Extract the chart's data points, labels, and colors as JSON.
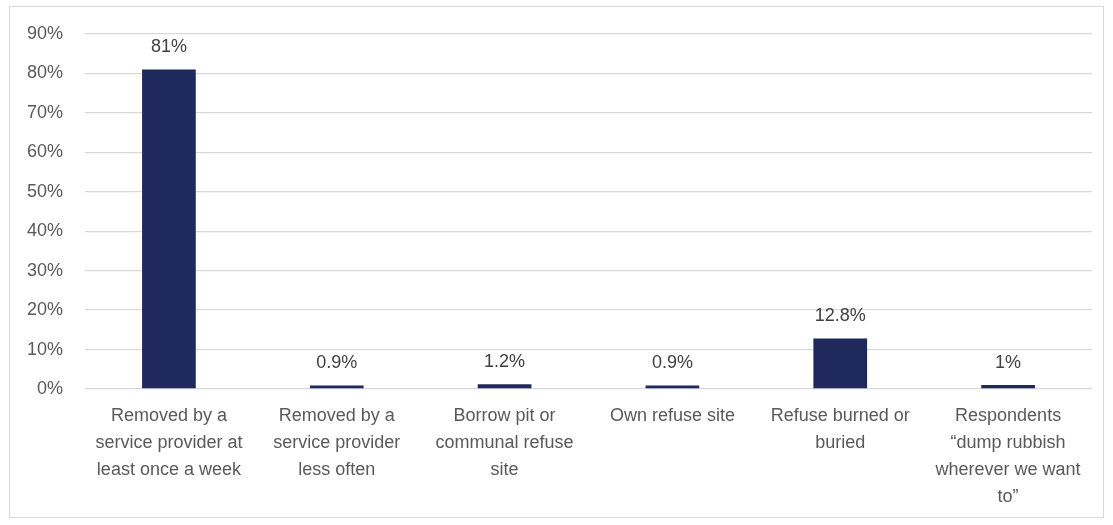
{
  "chart_data": {
    "type": "bar",
    "categories": [
      "Removed by a service provider at least once a week",
      "Removed by a service provider less often",
      "Borrow pit or communal refuse site",
      "Own refuse site",
      "Refuse burned or buried",
      "Respondents “dump rubbish wherever we want to”"
    ],
    "values": [
      81,
      0.9,
      1.2,
      0.9,
      12.8,
      1
    ],
    "color": "#1f295c",
    "value_labels": [
      "81%",
      "0.9%",
      "1.2%",
      "0.9%",
      "12.8%",
      "1%"
    ],
    "ylim": [
      0,
      90
    ],
    "yticks": [
      {
        "value": 0,
        "label": "0%"
      },
      {
        "value": 10,
        "label": "10%"
      },
      {
        "value": 20,
        "label": "20%"
      },
      {
        "value": 30,
        "label": "30%"
      },
      {
        "value": 40,
        "label": "40%"
      },
      {
        "value": 50,
        "label": "50%"
      },
      {
        "value": 60,
        "label": "60%"
      },
      {
        "value": 70,
        "label": "70%"
      },
      {
        "value": 80,
        "label": "80%"
      },
      {
        "value": 90,
        "label": "90%"
      }
    ],
    "grid": "y"
  }
}
